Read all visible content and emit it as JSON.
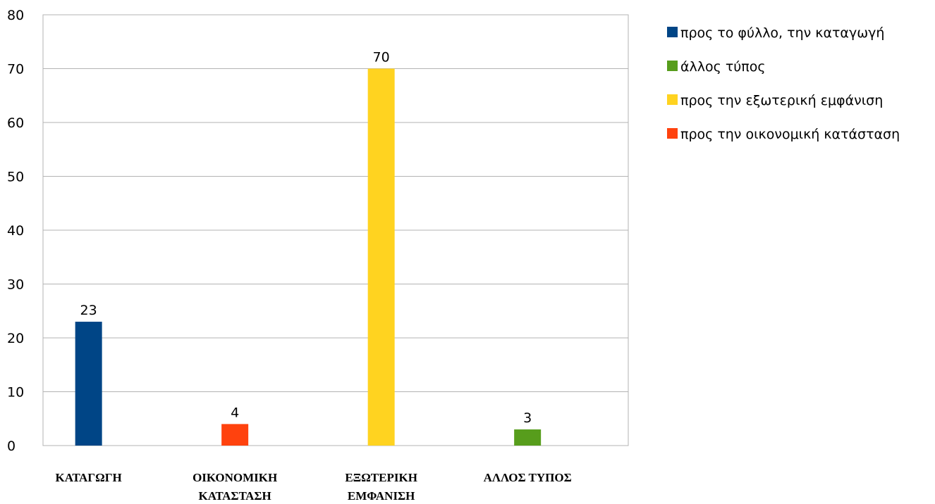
{
  "chart_data": {
    "type": "bar",
    "categories": [
      [
        "ΚΑΤΑΓΩΓΗ"
      ],
      [
        "ΟΙΚΟΝΟΜΙΚΗ",
        "ΚΑΤΑΣΤΑΣΗ"
      ],
      [
        "ΕΞΩΤΕΡΙΚΗ",
        "ΕΜΦΑΝΙΣΗ"
      ],
      [
        "ΑΛΛΟΣ ΤΥΠΟΣ"
      ]
    ],
    "values": [
      23,
      4,
      70,
      3
    ],
    "colors": [
      "#004586",
      "#ff420e",
      "#ffd320",
      "#579d1c"
    ],
    "ylim": [
      0,
      80
    ],
    "yticks": [
      0,
      10,
      20,
      30,
      40,
      50,
      60,
      70,
      80
    ],
    "grid": true,
    "legend_position": "top-right",
    "legend": [
      {
        "label": "προς το φύλλο, την καταγωγή",
        "color": "#004586"
      },
      {
        "label": "άλλος τύπος",
        "color": "#579d1c"
      },
      {
        "label": "προς την εξωτερική εμφάνιση",
        "color": "#ffd320"
      },
      {
        "label": "προς την οικονομική κατάσταση",
        "color": "#ff420e"
      }
    ],
    "data_labels": true
  }
}
